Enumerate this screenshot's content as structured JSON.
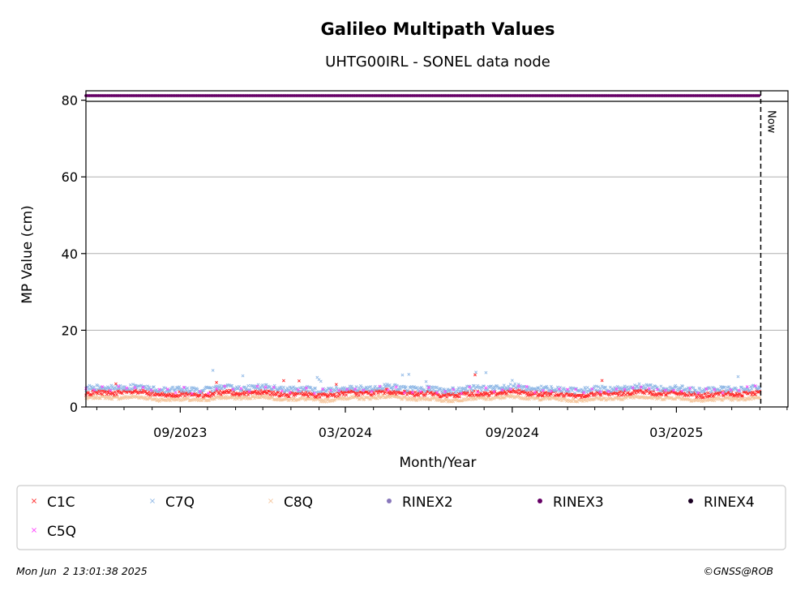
{
  "chart_data": {
    "type": "scatter",
    "title": "Galileo Multipath Values",
    "subtitle": "UHTG00IRL - SONEL data node",
    "xlabel": "Month/Year",
    "ylabel": "MP Value (cm)",
    "xlim": [
      "2023-05-20",
      "2025-07-02"
    ],
    "ylim": [
      0,
      80
    ],
    "yticks": [
      0,
      20,
      40,
      60,
      80
    ],
    "xticks": [
      {
        "date": "2023-09-01",
        "label": "09/2023"
      },
      {
        "date": "2024-03-01",
        "label": "03/2024"
      },
      {
        "date": "2024-09-01",
        "label": "09/2024"
      },
      {
        "date": "2025-03-01",
        "label": "03/2025"
      }
    ],
    "grid": "horizontal",
    "now_marker": {
      "date": "2025-06-02",
      "label": "Now"
    },
    "data_range": {
      "start": "2023-05-20",
      "end": "2025-06-01"
    },
    "series": [
      {
        "name": "C1C",
        "marker": "x",
        "color": "#ff2a2a",
        "typical_value": 3.5,
        "spread": 0.6
      },
      {
        "name": "C7Q",
        "marker": "x",
        "color": "#8fb8e6",
        "typical_value": 4.8,
        "spread": 0.7
      },
      {
        "name": "C8Q",
        "marker": "x",
        "color": "#f5c79f",
        "typical_value": 2.2,
        "spread": 0.4
      },
      {
        "name": "RINEX2",
        "marker": "o",
        "color": "#8877bb"
      },
      {
        "name": "RINEX3",
        "marker": "o",
        "color": "#660066",
        "value": 81.5
      },
      {
        "name": "RINEX4",
        "marker": "o",
        "color": "#1a0022"
      },
      {
        "name": "C5Q",
        "marker": "x",
        "color": "#ff44ff",
        "typical_value": 4.5,
        "spread": 0.8
      }
    ],
    "legend_position": "bottom"
  },
  "footer": {
    "timestamp": "Mon Jun  2 13:01:38 2025",
    "credit": "©GNSS@ROB"
  }
}
